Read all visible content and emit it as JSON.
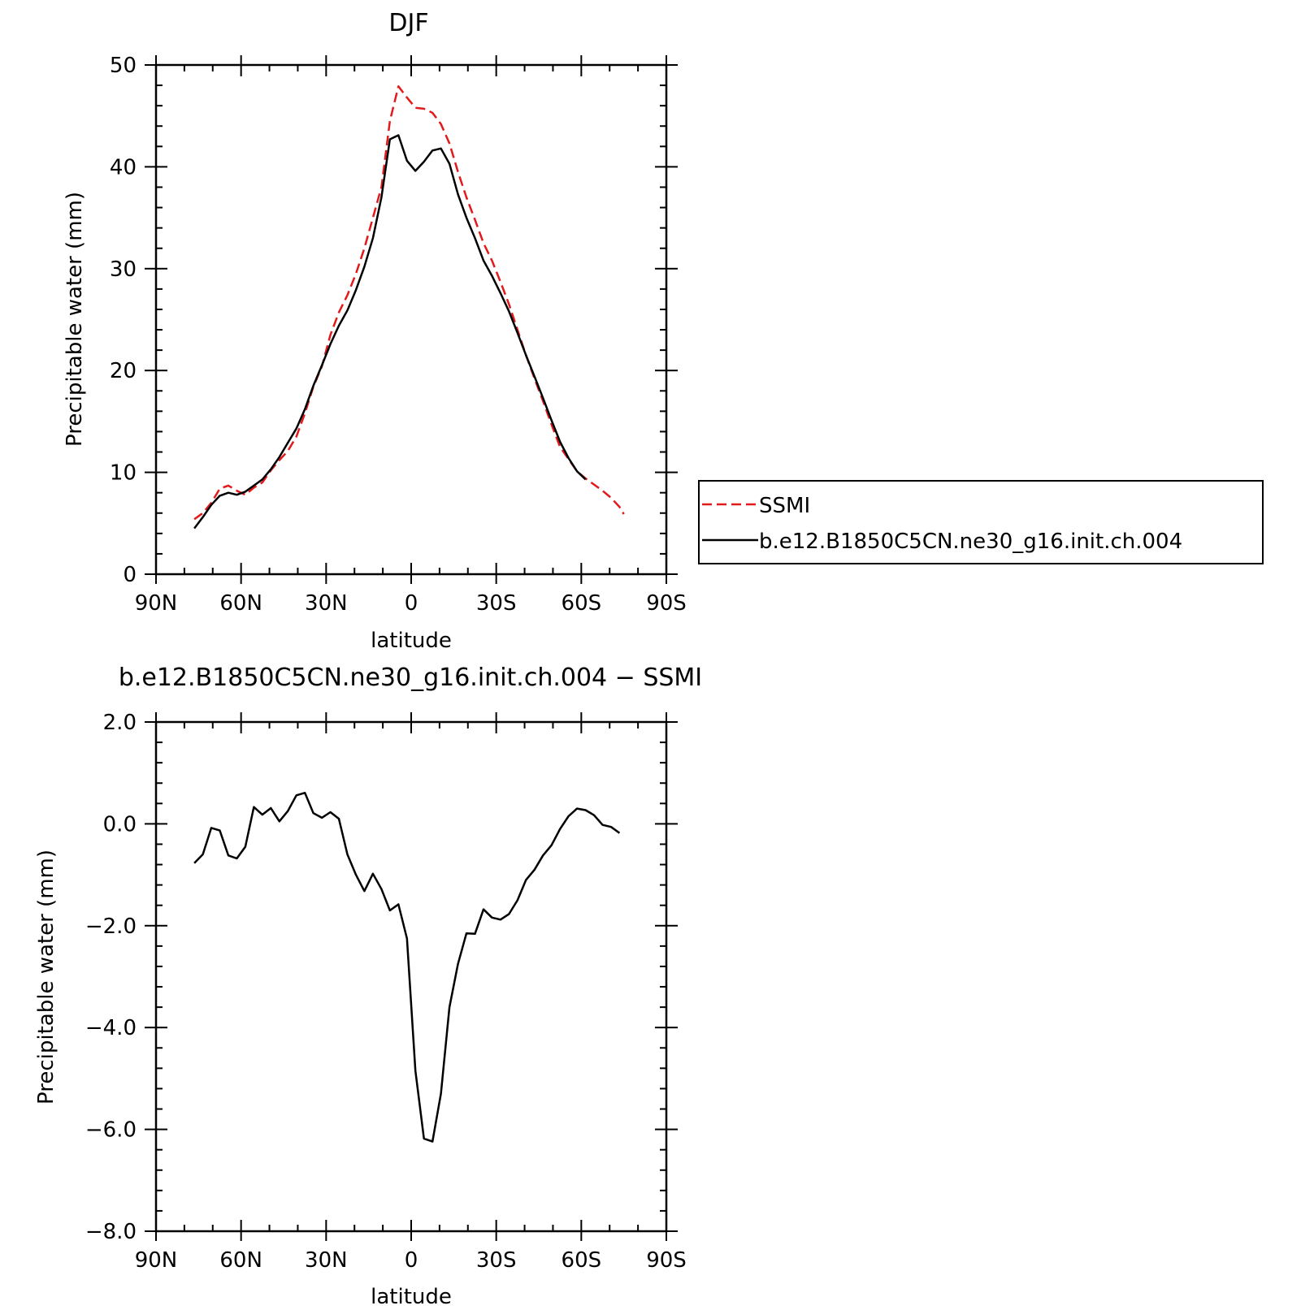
{
  "colors": {
    "ssmi": "#e31a1c",
    "model": "#000000",
    "axis": "#000000"
  },
  "chart_data": [
    {
      "type": "line",
      "title": "DJF",
      "xlabel": "latitude",
      "ylabel": "Precipitable water (mm)",
      "xlim": [
        90,
        -90
      ],
      "ylim": [
        0,
        50
      ],
      "x_ticks": [
        {
          "value": 90,
          "label": "90N"
        },
        {
          "value": 60,
          "label": "60N"
        },
        {
          "value": 30,
          "label": "30N"
        },
        {
          "value": 0,
          "label": "0"
        },
        {
          "value": -30,
          "label": "30S"
        },
        {
          "value": -60,
          "label": "60S"
        },
        {
          "value": -90,
          "label": "90S"
        }
      ],
      "y_ticks": [
        {
          "value": 0,
          "label": "0"
        },
        {
          "value": 10,
          "label": "10"
        },
        {
          "value": 20,
          "label": "20"
        },
        {
          "value": 30,
          "label": "30"
        },
        {
          "value": 40,
          "label": "40"
        },
        {
          "value": 50,
          "label": "50"
        }
      ],
      "legend": {
        "placement": "right"
      },
      "series": [
        {
          "name": "SSMI",
          "style": "dashed",
          "color": "#e31a1c",
          "points": [
            [
              76.5,
              5.4
            ],
            [
              73.5,
              6.0
            ],
            [
              70.5,
              7.0
            ],
            [
              67.5,
              8.4
            ],
            [
              64.5,
              8.7
            ],
            [
              61.5,
              8.2
            ],
            [
              58.5,
              7.8
            ],
            [
              55.5,
              8.5
            ],
            [
              52.5,
              9.0
            ],
            [
              49.5,
              10.2
            ],
            [
              46.5,
              11.2
            ],
            [
              43.5,
              12.1
            ],
            [
              40.5,
              13.5
            ],
            [
              37.5,
              15.8
            ],
            [
              34.5,
              18.4
            ],
            [
              31.5,
              20.4
            ],
            [
              28.5,
              23.5
            ],
            [
              25.5,
              25.7
            ],
            [
              22.5,
              27.4
            ],
            [
              19.5,
              29.5
            ],
            [
              16.5,
              32.0
            ],
            [
              13.5,
              35.0
            ],
            [
              10.5,
              38.0
            ],
            [
              7.5,
              44.5
            ],
            [
              4.5,
              47.9
            ],
            [
              1.5,
              46.8
            ],
            [
              -1.5,
              45.8
            ],
            [
              -4.5,
              45.7
            ],
            [
              -7.5,
              45.3
            ],
            [
              -10.5,
              44.2
            ],
            [
              -13.5,
              42.3
            ],
            [
              -16.5,
              39.5
            ],
            [
              -19.5,
              37.0
            ],
            [
              -22.5,
              34.8
            ],
            [
              -25.5,
              32.5
            ],
            [
              -28.5,
              30.8
            ],
            [
              -31.5,
              28.7
            ],
            [
              -34.5,
              26.5
            ],
            [
              -37.5,
              24.0
            ],
            [
              -40.5,
              21.5
            ],
            [
              -43.5,
              19.2
            ],
            [
              -46.5,
              17.0
            ],
            [
              -49.5,
              14.7
            ],
            [
              -52.5,
              12.5
            ],
            [
              -55.5,
              11.3
            ],
            [
              -58.5,
              10.1
            ],
            [
              -61.5,
              9.4
            ],
            [
              -64.5,
              8.8
            ],
            [
              -67.5,
              8.2
            ],
            [
              -70.5,
              7.5
            ],
            [
              -73.5,
              6.6
            ],
            [
              -75.0,
              5.9
            ]
          ]
        },
        {
          "name": "b.e12.B1850C5CN.ne30_g16.init.ch.004",
          "style": "solid",
          "color": "#000000",
          "points": [
            [
              76.5,
              4.5
            ],
            [
              73.5,
              5.6
            ],
            [
              70.5,
              6.8
            ],
            [
              67.5,
              7.7
            ],
            [
              64.5,
              8.0
            ],
            [
              61.5,
              7.8
            ],
            [
              58.5,
              8.1
            ],
            [
              55.5,
              8.7
            ],
            [
              52.5,
              9.3
            ],
            [
              49.5,
              10.3
            ],
            [
              46.5,
              11.5
            ],
            [
              43.5,
              12.9
            ],
            [
              40.5,
              14.3
            ],
            [
              37.5,
              16.2
            ],
            [
              34.5,
              18.5
            ],
            [
              31.5,
              20.5
            ],
            [
              28.5,
              22.6
            ],
            [
              25.5,
              24.4
            ],
            [
              22.5,
              25.9
            ],
            [
              19.5,
              27.9
            ],
            [
              16.5,
              30.2
            ],
            [
              13.5,
              33.0
            ],
            [
              10.5,
              37.0
            ],
            [
              7.5,
              42.7
            ],
            [
              4.5,
              43.1
            ],
            [
              1.5,
              40.6
            ],
            [
              -1.5,
              39.6
            ],
            [
              -4.5,
              40.5
            ],
            [
              -7.5,
              41.6
            ],
            [
              -10.5,
              41.8
            ],
            [
              -13.5,
              40.3
            ],
            [
              -16.5,
              37.3
            ],
            [
              -19.5,
              35.0
            ],
            [
              -22.5,
              33.0
            ],
            [
              -25.5,
              30.8
            ],
            [
              -28.5,
              29.3
            ],
            [
              -31.5,
              27.6
            ],
            [
              -34.5,
              25.8
            ],
            [
              -37.5,
              23.7
            ],
            [
              -40.5,
              21.5
            ],
            [
              -43.5,
              19.4
            ],
            [
              -46.5,
              17.3
            ],
            [
              -49.5,
              15.1
            ],
            [
              -52.5,
              13.0
            ],
            [
              -55.5,
              11.4
            ],
            [
              -58.5,
              10.1
            ],
            [
              -61.5,
              9.3
            ]
          ]
        }
      ]
    },
    {
      "type": "line",
      "title": "b.e12.B1850C5CN.ne30_g16.init.ch.004 − SSMI",
      "xlabel": "latitude",
      "ylabel": "Precipitable water (mm)",
      "xlim": [
        90,
        -90
      ],
      "ylim": [
        -8,
        2
      ],
      "x_ticks": [
        {
          "value": 90,
          "label": "90N"
        },
        {
          "value": 60,
          "label": "60N"
        },
        {
          "value": 30,
          "label": "30N"
        },
        {
          "value": 0,
          "label": "0"
        },
        {
          "value": -30,
          "label": "30S"
        },
        {
          "value": -60,
          "label": "60S"
        },
        {
          "value": -90,
          "label": "90S"
        }
      ],
      "y_ticks": [
        {
          "value": -8,
          "label": "−8.0"
        },
        {
          "value": -6,
          "label": "−6.0"
        },
        {
          "value": -4,
          "label": "−4.0"
        },
        {
          "value": -2,
          "label": "−2.0"
        },
        {
          "value": 0,
          "label": "0.0"
        },
        {
          "value": 2,
          "label": "2.0"
        }
      ],
      "series": [
        {
          "style": "solid",
          "color": "#000000",
          "points": [
            [
              76.5,
              -0.77
            ],
            [
              73.5,
              -0.6
            ],
            [
              70.5,
              -0.08
            ],
            [
              67.5,
              -0.13
            ],
            [
              64.5,
              -0.62
            ],
            [
              61.5,
              -0.68
            ],
            [
              58.5,
              -0.45
            ],
            [
              55.5,
              0.33
            ],
            [
              52.5,
              0.18
            ],
            [
              49.5,
              0.31
            ],
            [
              46.5,
              0.05
            ],
            [
              43.5,
              0.25
            ],
            [
              40.5,
              0.56
            ],
            [
              37.5,
              0.61
            ],
            [
              34.5,
              0.21
            ],
            [
              31.5,
              0.12
            ],
            [
              28.5,
              0.23
            ],
            [
              25.5,
              0.1
            ],
            [
              22.5,
              -0.6
            ],
            [
              19.5,
              -1.0
            ],
            [
              16.5,
              -1.32
            ],
            [
              13.5,
              -0.98
            ],
            [
              10.5,
              -1.28
            ],
            [
              7.5,
              -1.7
            ],
            [
              4.5,
              -1.58
            ],
            [
              1.5,
              -2.25
            ],
            [
              -1.5,
              -4.85
            ],
            [
              -4.5,
              -6.18
            ],
            [
              -7.5,
              -6.24
            ],
            [
              -10.5,
              -5.3
            ],
            [
              -13.5,
              -3.6
            ],
            [
              -16.5,
              -2.75
            ],
            [
              -19.5,
              -2.15
            ],
            [
              -22.5,
              -2.16
            ],
            [
              -25.5,
              -1.68
            ],
            [
              -28.5,
              -1.84
            ],
            [
              -31.5,
              -1.88
            ],
            [
              -34.5,
              -1.77
            ],
            [
              -37.5,
              -1.5
            ],
            [
              -40.5,
              -1.1
            ],
            [
              -43.5,
              -0.9
            ],
            [
              -46.5,
              -0.62
            ],
            [
              -49.5,
              -0.42
            ],
            [
              -52.5,
              -0.1
            ],
            [
              -55.5,
              0.15
            ],
            [
              -58.5,
              0.3
            ],
            [
              -61.5,
              0.27
            ],
            [
              -64.5,
              0.17
            ],
            [
              -67.5,
              -0.02
            ],
            [
              -70.5,
              -0.06
            ],
            [
              -73.5,
              -0.18
            ]
          ]
        }
      ]
    }
  ]
}
